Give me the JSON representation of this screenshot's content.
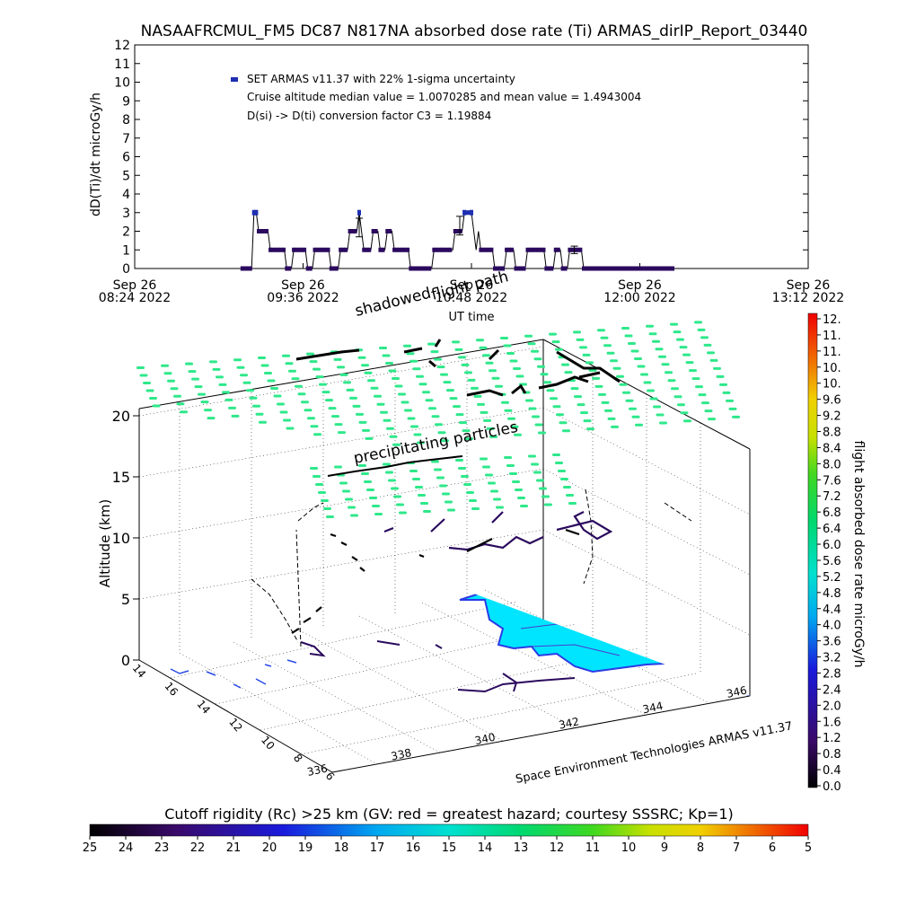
{
  "colors": {
    "trace": "#000000",
    "dot": "#2b0a5e",
    "dot_high": "#1f2fb0",
    "ground_cyan": "#00e5ff",
    "ground_shore": "#2a3be6",
    "particles": "#2ee88a"
  },
  "chart_data": [
    {
      "type": "line",
      "title": "NASAAFRCMUL_FM5 DC87 N817NA absorbed dose rate (Ti) ARMAS_dirIP_Report_03440",
      "ylabel": "dD(Ti)/dt microGy/h",
      "xlabel": "UT time",
      "ylim": [
        0,
        12
      ],
      "xlim": [
        "08:24",
        "13:12"
      ],
      "y_ticks": [
        "0",
        "1",
        "2",
        "3",
        "4",
        "5",
        "6",
        "7",
        "8",
        "9",
        "10",
        "11",
        "12"
      ],
      "x_ticks": [
        {
          "top": "Sep 26",
          "bottom": "08:24 2022"
        },
        {
          "top": "Sep 26",
          "bottom": "09:36 2022"
        },
        {
          "top": "Sep 26",
          "bottom": "10:48 2022"
        },
        {
          "top": "Sep 26",
          "bottom": "12:00 2022"
        },
        {
          "top": "Sep 26",
          "bottom": "13:12 2022"
        }
      ],
      "legend": {
        "marker_label": "SET ARMAS v11.37 with 22% 1-sigma uncertainty",
        "median_text": "Cruise altitude median value = 1.0070285 and mean value = 1.4943004",
        "conversion_text": "D(si) -> D(ti) conversion factor C3 = 1.19884"
      },
      "series": [
        {
          "points": [
            [
              "09:10",
              0
            ],
            [
              "09:14",
              0
            ],
            [
              "09:15",
              3
            ],
            [
              "09:16",
              3
            ],
            [
              "09:17",
              2
            ],
            [
              "09:21",
              2
            ],
            [
              "09:22",
              1
            ],
            [
              "09:28",
              1
            ],
            [
              "09:29",
              0
            ],
            [
              "09:31",
              0
            ],
            [
              "09:32",
              1
            ],
            [
              "09:37",
              1
            ],
            [
              "09:38",
              0
            ],
            [
              "09:40",
              0
            ],
            [
              "09:41",
              1
            ],
            [
              "09:47",
              1
            ],
            [
              "09:48",
              0
            ],
            [
              "09:51",
              0
            ],
            [
              "09:52",
              1
            ],
            [
              "09:55",
              1
            ],
            [
              "09:56",
              2
            ],
            [
              "09:59",
              2
            ],
            [
              "10:00",
              3
            ],
            [
              "10:01",
              2
            ],
            [
              "10:02",
              1
            ],
            [
              "10:05",
              1
            ],
            [
              "10:06",
              2
            ],
            [
              "10:08",
              2
            ],
            [
              "10:09",
              1
            ],
            [
              "10:11",
              1
            ],
            [
              "10:12",
              2
            ],
            [
              "10:14",
              2
            ],
            [
              "10:15",
              1
            ],
            [
              "10:21",
              1
            ],
            [
              "10:22",
              0
            ],
            [
              "10:31",
              0
            ],
            [
              "10:32",
              1
            ],
            [
              "10:40",
              1
            ],
            [
              "10:41",
              2
            ],
            [
              "10:44",
              2
            ],
            [
              "10:45",
              3
            ],
            [
              "10:48",
              3
            ],
            [
              "10:49",
              2
            ],
            [
              "10:50",
              1
            ],
            [
              "10:51",
              2
            ],
            [
              "10:52",
              1
            ],
            [
              "10:57",
              1
            ],
            [
              "10:58",
              0
            ],
            [
              "11:02",
              0
            ],
            [
              "11:03",
              1
            ],
            [
              "11:06",
              1
            ],
            [
              "11:07",
              0
            ],
            [
              "11:11",
              0
            ],
            [
              "11:12",
              1
            ],
            [
              "11:19",
              1
            ],
            [
              "11:20",
              0
            ],
            [
              "11:23",
              0
            ],
            [
              "11:24",
              1
            ],
            [
              "11:26",
              1
            ],
            [
              "11:27",
              0
            ],
            [
              "11:29",
              0
            ],
            [
              "11:30",
              1
            ],
            [
              "11:35",
              1
            ],
            [
              "11:36",
              0
            ],
            [
              "12:15",
              0
            ]
          ]
        }
      ],
      "error_bars": [
        {
          "x": "10:00",
          "y": 2.2,
          "lo": 1.7,
          "hi": 2.7
        },
        {
          "x": "10:43",
          "y": 2.3,
          "lo": 1.8,
          "hi": 2.8
        },
        {
          "x": "11:32",
          "y": 1.0,
          "lo": 0.8,
          "hi": 1.2
        }
      ]
    },
    {
      "type": "scatter",
      "title": "",
      "ylabel": "Altitude (km)",
      "z_ticks": [
        "0",
        "5",
        "10",
        "15",
        "20"
      ],
      "lat_ticks": [
        "14",
        "16",
        "14",
        "12",
        "10",
        "8",
        "6"
      ],
      "lon_ticks": [
        "336",
        "338",
        "340",
        "342",
        "344",
        "346"
      ],
      "annotations": [
        "shadowed",
        "flight path",
        "precipitating particles"
      ],
      "credit": "Space Environment Technologies ARMAS v11.37"
    },
    {
      "type": "heatmap",
      "ylabel": "flight absorbed dose rate microGy/h",
      "ticks": [
        "12.",
        "11.",
        "11.",
        "10.",
        "10.",
        "9.6",
        "9.2",
        "8.8",
        "8.4",
        "8.0",
        "7.6",
        "7.2",
        "6.8",
        "6.4",
        "6.0",
        "5.6",
        "5.2",
        "4.8",
        "4.4",
        "4.0",
        "3.6",
        "3.2",
        "2.8",
        "2.4",
        "2.0",
        "1.6",
        "1.2",
        "0.8",
        "0.4",
        "0.0"
      ]
    },
    {
      "type": "heatmap",
      "title": "Cutoff rigidity (Rc) >25 km (GV: red = greatest hazard; courtesy SSSRC; Kp=1)",
      "ticks": [
        "25",
        "24",
        "23",
        "22",
        "21",
        "20",
        "19",
        "18",
        "17",
        "16",
        "15",
        "14",
        "13",
        "12",
        "11",
        "10",
        "9",
        "8",
        "7",
        "6",
        "5"
      ]
    }
  ]
}
